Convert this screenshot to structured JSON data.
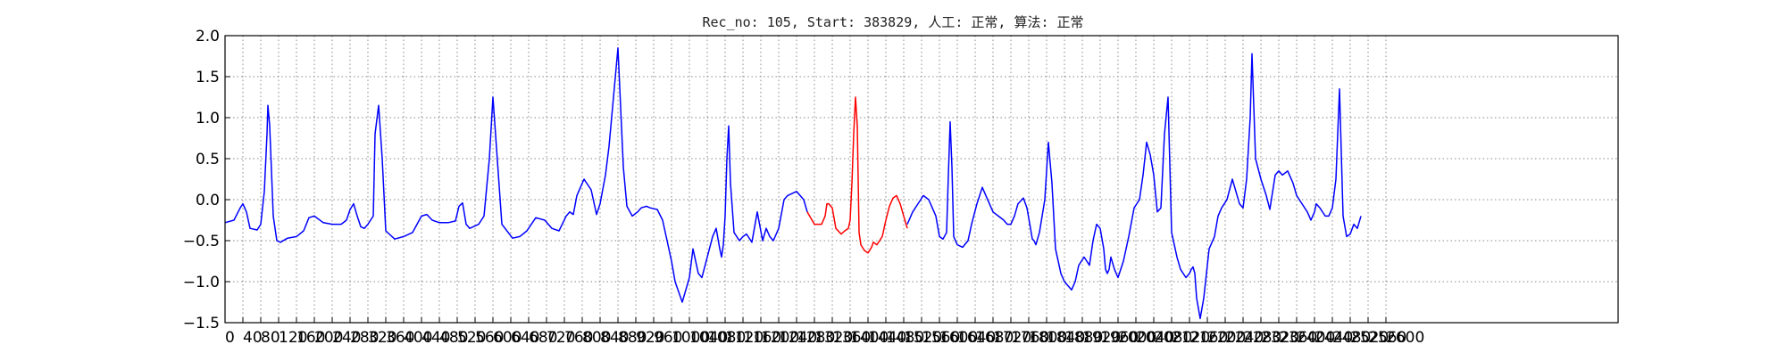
{
  "chart_data": {
    "type": "line",
    "title": "Rec_no: 105, Start: 383829, 人工: 正常, 算法: 正常",
    "xlabel": "",
    "ylabel": "",
    "ylim": [
      -1.5,
      2.0
    ],
    "xlim": [
      0,
      1560
    ],
    "grid": true,
    "y_ticks": [
      "2.0",
      "1.5",
      "1.0",
      "0.5",
      "0.0",
      "−0.5",
      "−1.0",
      "−1.5"
    ],
    "x_ticks": [
      "0",
      "40",
      "80",
      "120",
      "160",
      "200",
      "240",
      "280",
      "320",
      "360",
      "400",
      "440",
      "480",
      "520",
      "560",
      "600",
      "640",
      "680",
      "720",
      "760",
      "800",
      "840",
      "880",
      "920",
      "960",
      "1000",
      "1040",
      "1080",
      "1120",
      "1160",
      "1200",
      "1240",
      "1280",
      "1320",
      "1360",
      "1400",
      "1440",
      "1480",
      "1520",
      "1560",
      "1600",
      "1640",
      "1680",
      "1720",
      "1760",
      "1800",
      "1840",
      "1880",
      "1920",
      "1960",
      "2000",
      "2040",
      "2080",
      "2120",
      "2160",
      "2200",
      "2240",
      "2280",
      "2320",
      "2360",
      "2400",
      "2440",
      "2480",
      "2520",
      "2560",
      "2600"
    ],
    "series": [
      {
        "color": "#0000ff",
        "x": [
          0,
          10,
          17,
          20,
          24,
          28,
          36,
          40,
          44,
          47,
          48,
          50,
          54,
          58,
          62,
          70,
          80,
          88,
          94,
          100,
          110,
          120,
          130,
          136,
          140,
          144,
          148,
          152,
          156,
          160,
          166,
          168,
          172,
          176,
          180,
          190,
          200,
          210,
          220,
          226,
          232,
          240,
          250,
          258,
          262,
          266,
          270,
          274,
          284,
          290,
          296,
          300,
          310,
          322,
          330,
          338,
          348,
          358,
          366,
          374,
          382,
          386,
          390,
          394,
          398,
          402,
          410,
          416,
          420,
          426,
          430,
          440,
          446,
          450,
          456,
          462,
          466,
          472,
          476,
          484,
          490,
          494,
          500,
          504,
          512,
          520,
          524,
          530,
          534,
          540,
          546,
          550,
          554,
          556,
          558,
          560,
          562,
          564,
          566,
          570,
          576,
          580,
          584,
          590,
          596,
          602,
          606,
          610,
          614,
          620,
          626,
          630,
          640,
          648,
          652
        ],
        "y": [
          -0.28,
          -0.25,
          -0.1,
          -0.05,
          -0.15,
          -0.35,
          -0.37,
          -0.3,
          0.1,
          0.8,
          1.15,
          0.9,
          -0.2,
          -0.5,
          -0.52,
          -0.47,
          -0.45,
          -0.38,
          -0.22,
          -0.2,
          -0.28,
          -0.3,
          -0.3,
          -0.25,
          -0.12,
          -0.05,
          -0.2,
          -0.33,
          -0.35,
          -0.3,
          -0.2,
          0.8,
          1.15,
          0.5,
          -0.38,
          -0.48,
          -0.45,
          -0.4,
          -0.2,
          -0.18,
          -0.25,
          -0.28,
          -0.28,
          -0.26,
          -0.08,
          -0.04,
          -0.3,
          -0.35,
          -0.3,
          -0.2,
          0.5,
          1.25,
          -0.3,
          -0.47,
          -0.45,
          -0.38,
          -0.22,
          -0.25,
          -0.35,
          -0.38,
          -0.2,
          -0.15,
          -0.18,
          0.05,
          0.15,
          0.25,
          0.12,
          -0.18,
          -0.05,
          0.3,
          0.65,
          1.85,
          0.4,
          -0.08,
          -0.2,
          -0.15,
          -0.1,
          -0.08,
          -0.1,
          -0.12,
          -0.25,
          -0.45,
          -0.75,
          -1.0,
          -1.25,
          -0.95,
          -0.6,
          -0.9,
          -0.95,
          -0.7,
          -0.45,
          -0.35,
          -0.6,
          -0.7,
          -0.55,
          -0.2,
          0.5,
          0.9,
          0.2,
          -0.4,
          -0.5,
          -0.45,
          -0.42,
          -0.52,
          -0.15,
          -0.5,
          -0.35,
          -0.45,
          -0.5,
          -0.35,
          0.0,
          0.05,
          0.1,
          0.0,
          -0.15
        ]
      },
      {
        "color": "#ff0000",
        "x": [
          652,
          660,
          668,
          672,
          674,
          676,
          680,
          684,
          690,
          694,
          698,
          700,
          702,
          704,
          706,
          708,
          710,
          712,
          716,
          720,
          724,
          726,
          730,
          736,
          740,
          744,
          748,
          752,
          756,
          760,
          764
        ],
        "y": [
          -0.15,
          -0.3,
          -0.3,
          -0.2,
          -0.05,
          -0.05,
          -0.1,
          -0.35,
          -0.42,
          -0.38,
          -0.35,
          -0.25,
          0.2,
          0.8,
          1.25,
          0.9,
          -0.4,
          -0.55,
          -0.62,
          -0.65,
          -0.58,
          -0.52,
          -0.55,
          -0.45,
          -0.25,
          -0.08,
          0.02,
          0.05,
          -0.05,
          -0.2,
          -0.35
        ]
      },
      {
        "color": "#0000ff",
        "x": [
          764,
          770,
          776,
          782,
          788,
          792,
          796,
          800,
          804,
          808,
          810,
          812,
          814,
          816,
          820,
          826,
          832,
          836,
          842,
          848,
          852,
          856,
          860,
          866,
          872,
          876,
          880,
          884,
          888,
          894,
          898,
          902,
          904,
          906,
          908,
          912,
          918,
          922,
          926,
          930,
          936,
          940,
          944,
          948,
          952,
          956,
          962,
          968,
          972,
          976,
          980,
          984,
          986,
          988,
          990,
          992,
          996,
          1000,
          1006,
          1012,
          1018,
          1024,
          1028,
          1032,
          1036,
          1040,
          1044,
          1048,
          1052,
          1056,
          1060,
          1066,
          1070,
          1076,
          1080,
          1082,
          1084,
          1086,
          1088,
          1092,
          1096,
          1102,
          1108,
          1112,
          1116,
          1122,
          1128,
          1136,
          1140,
          1144,
          1148,
          1150,
          1154,
          1160,
          1166,
          1170,
          1176,
          1180,
          1184,
          1190,
          1196,
          1200,
          1206,
          1212,
          1216,
          1220,
          1222,
          1226,
          1232,
          1236,
          1240,
          1244,
          1248,
          1252,
          1256,
          1260,
          1264,
          1268,
          1272
        ],
        "y": [
          -0.3,
          -0.15,
          -0.05,
          0.05,
          0.0,
          -0.1,
          -0.2,
          -0.45,
          -0.48,
          -0.4,
          0.3,
          0.95,
          0.4,
          -0.45,
          -0.55,
          -0.58,
          -0.5,
          -0.3,
          -0.05,
          0.15,
          0.05,
          -0.05,
          -0.15,
          -0.2,
          -0.25,
          -0.3,
          -0.3,
          -0.2,
          -0.05,
          0.02,
          -0.1,
          -0.35,
          -0.48,
          -0.5,
          -0.55,
          -0.4,
          0.0,
          0.7,
          0.2,
          -0.6,
          -0.9,
          -1.0,
          -1.05,
          -1.1,
          -1.0,
          -0.8,
          -0.7,
          -0.8,
          -0.5,
          -0.3,
          -0.35,
          -0.6,
          -0.85,
          -0.9,
          -0.85,
          -0.7,
          -0.85,
          -0.95,
          -0.75,
          -0.45,
          -0.1,
          0.0,
          0.3,
          0.7,
          0.55,
          0.3,
          -0.15,
          -0.1,
          0.8,
          1.25,
          -0.4,
          -0.7,
          -0.85,
          -0.95,
          -0.9,
          -0.85,
          -0.82,
          -0.9,
          -1.2,
          -1.45,
          -1.2,
          -0.6,
          -0.45,
          -0.2,
          -0.1,
          0.0,
          0.25,
          -0.05,
          -0.1,
          0.25,
          1.0,
          1.78,
          0.5,
          0.25,
          0.05,
          -0.12,
          0.3,
          0.35,
          0.3,
          0.35,
          0.2,
          0.05,
          -0.05,
          -0.15,
          -0.25,
          -0.15,
          -0.05,
          -0.1,
          -0.2,
          -0.2,
          -0.1,
          0.25,
          1.35,
          -0.2,
          -0.45,
          -0.42,
          -0.3,
          -0.35,
          -0.2
        ]
      }
    ]
  }
}
